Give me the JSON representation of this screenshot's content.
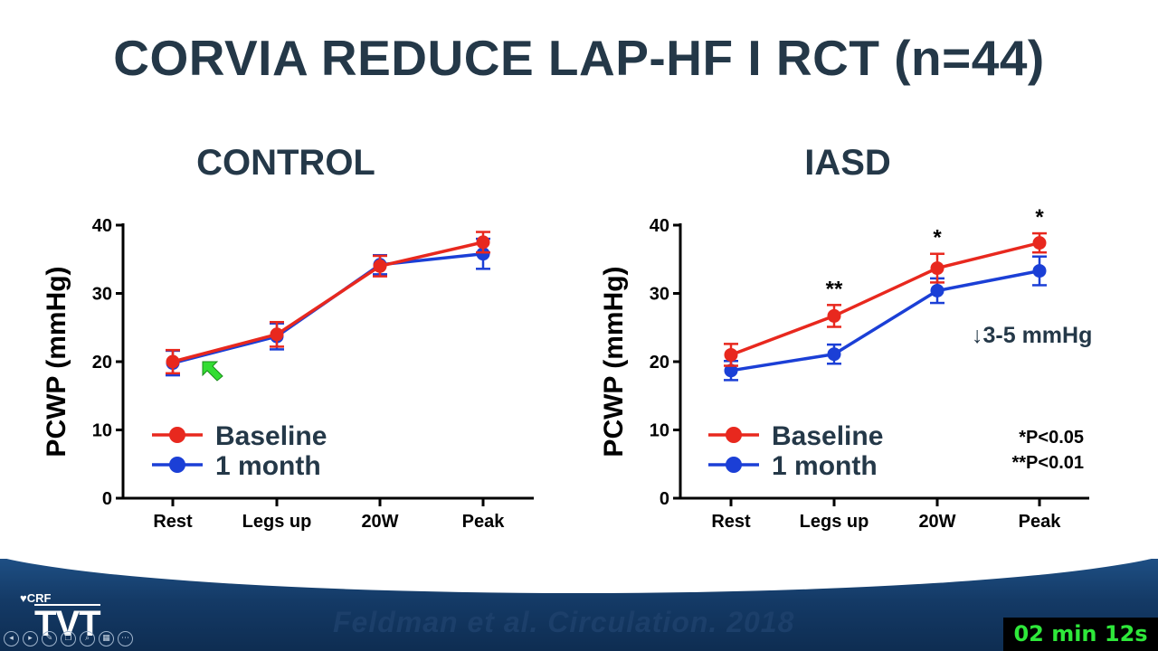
{
  "slide": {
    "title": "CORVIA REDUCE LAP-HF I RCT (n=44)",
    "citation": "Feldman et al. Circulation. 2018",
    "timer": "02 min 12s",
    "logo_top": "CRF",
    "logo_main": "TVT"
  },
  "controls": [
    {
      "name": "previous-slide-icon",
      "glyph": "◂"
    },
    {
      "name": "play-icon",
      "glyph": "▸"
    },
    {
      "name": "pen-icon",
      "glyph": "✎"
    },
    {
      "name": "copy-icon",
      "glyph": "❐"
    },
    {
      "name": "zoom-icon",
      "glyph": "⌕"
    },
    {
      "name": "grid-icon",
      "glyph": "▦"
    },
    {
      "name": "more-icon",
      "glyph": "⋯"
    }
  ],
  "colors": {
    "baseline": "#e8281e",
    "one_month": "#1b3fd6",
    "title": "#243848",
    "axis": "#000000",
    "cursor": "#33dd33"
  },
  "chart_data": [
    {
      "type": "line",
      "title": "CONTROL",
      "ylabel": "PCWP (mmHg)",
      "xlabel": "",
      "categories": [
        "Rest",
        "Legs up",
        "20W",
        "Peak"
      ],
      "ylim": [
        0,
        40
      ],
      "yticks": [
        0,
        10,
        20,
        30,
        40
      ],
      "legend_position": "bottom-left",
      "series": [
        {
          "name": "Baseline",
          "color": "#e8281e",
          "values": [
            20,
            24,
            34,
            37.5
          ],
          "errors": [
            1.7,
            1.8,
            1.5,
            1.5
          ]
        },
        {
          "name": "1 month",
          "color": "#1b3fd6",
          "values": [
            19.8,
            23.7,
            34.2,
            35.8
          ],
          "errors": [
            1.8,
            1.9,
            1.4,
            2.2
          ]
        }
      ],
      "annotations": []
    },
    {
      "type": "line",
      "title": "IASD",
      "ylabel": "PCWP (mmHg)",
      "xlabel": "",
      "categories": [
        "Rest",
        "Legs up",
        "20W",
        "Peak"
      ],
      "ylim": [
        0,
        40
      ],
      "yticks": [
        0,
        10,
        20,
        30,
        40
      ],
      "legend_position": "bottom-left",
      "series": [
        {
          "name": "Baseline",
          "color": "#e8281e",
          "values": [
            21,
            26.7,
            33.7,
            37.4
          ],
          "errors": [
            1.6,
            1.6,
            2.1,
            1.4
          ]
        },
        {
          "name": "1 month",
          "color": "#1b3fd6",
          "values": [
            18.7,
            21.1,
            30.4,
            33.3
          ],
          "errors": [
            1.4,
            1.4,
            1.8,
            2.1
          ]
        }
      ],
      "significance": [
        "",
        "**",
        "*",
        "*"
      ],
      "annotations": [
        "↓3-5 mmHg",
        "*P<0.05",
        "**P<0.01"
      ]
    }
  ]
}
